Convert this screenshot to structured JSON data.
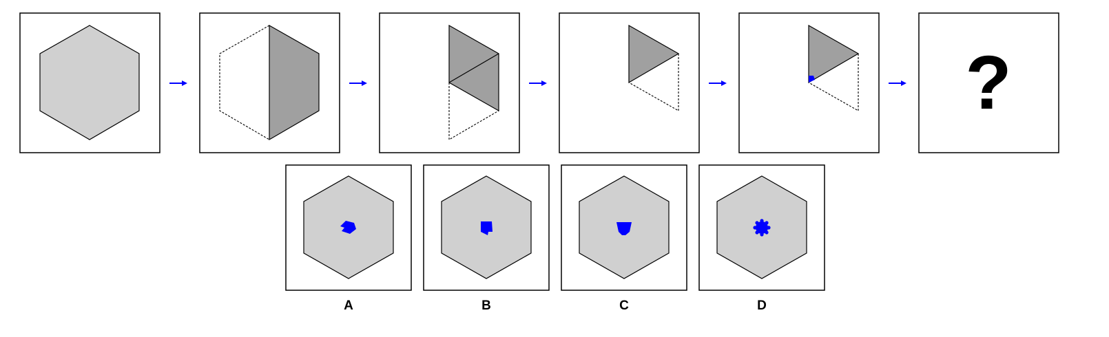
{
  "puzzle": {
    "sequence_unknown_symbol": "?",
    "colors": {
      "frame_stroke": "#000000",
      "hexagon_fill": "#d0d0d0",
      "folded_fill": "#a0a0a0",
      "fold_line": "#000000",
      "hole_blue": "#0000ff",
      "arrow_blue": "#0000ff"
    },
    "steps": [
      {
        "name": "full-hexagon"
      },
      {
        "name": "folded-in-half"
      },
      {
        "name": "folded-in-quarters"
      },
      {
        "name": "folded-to-triangle"
      },
      {
        "name": "triangle-with-punched-hole"
      },
      {
        "name": "unknown-result"
      }
    ],
    "options": [
      {
        "label": "A",
        "hole_shape": "pentagon-tilted"
      },
      {
        "label": "B",
        "hole_shape": "pentagon-notched"
      },
      {
        "label": "C",
        "hole_shape": "pentagon-down"
      },
      {
        "label": "D",
        "hole_shape": "cog-circle"
      }
    ]
  }
}
